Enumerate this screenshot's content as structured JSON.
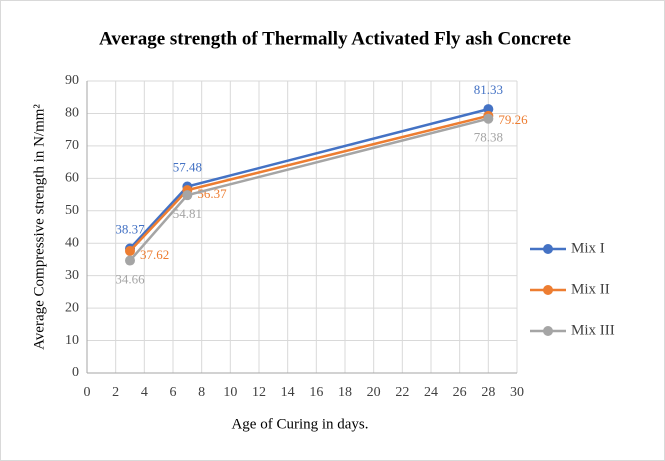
{
  "chart_data": {
    "type": "line",
    "title": "Average strength  of Thermally  Activated Fly ash Concrete",
    "xlabel": "Age of  Curing in days.",
    "ylabel": "Average  Compressive strength in N/mm²",
    "x": [
      3,
      7,
      28
    ],
    "series": [
      {
        "name": "Mix I",
        "color": "#4472c4",
        "values": [
          38.37,
          57.48,
          81.33
        ]
      },
      {
        "name": "Mix II",
        "color": "#ed7d31",
        "values": [
          37.62,
          56.37,
          79.26
        ]
      },
      {
        "name": "Mix III",
        "color": "#a5a5a5",
        "values": [
          34.66,
          54.81,
          78.38
        ]
      }
    ],
    "xlim": [
      0,
      30
    ],
    "xticks": [
      0,
      2,
      4,
      6,
      8,
      10,
      12,
      14,
      16,
      18,
      20,
      22,
      24,
      26,
      28,
      30
    ],
    "ylim": [
      0,
      90
    ],
    "yticks": [
      0,
      10,
      20,
      30,
      40,
      50,
      60,
      70,
      80,
      90
    ],
    "grid": true,
    "legend": "right"
  }
}
